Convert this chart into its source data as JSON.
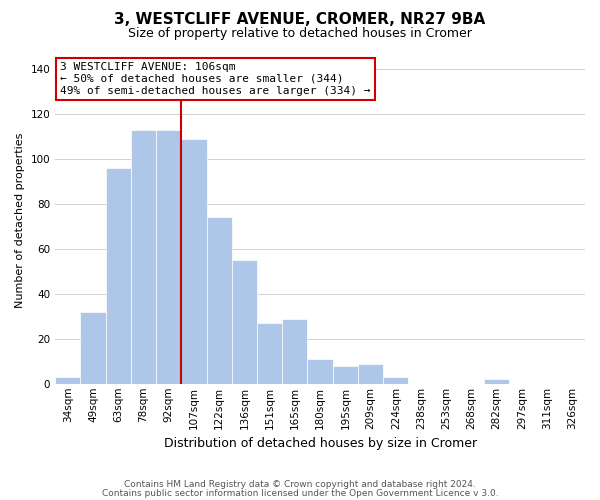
{
  "title": "3, WESTCLIFF AVENUE, CROMER, NR27 9BA",
  "subtitle": "Size of property relative to detached houses in Cromer",
  "xlabel": "Distribution of detached houses by size in Cromer",
  "ylabel": "Number of detached properties",
  "bar_labels": [
    "34sqm",
    "49sqm",
    "63sqm",
    "78sqm",
    "92sqm",
    "107sqm",
    "122sqm",
    "136sqm",
    "151sqm",
    "165sqm",
    "180sqm",
    "195sqm",
    "209sqm",
    "224sqm",
    "238sqm",
    "253sqm",
    "268sqm",
    "282sqm",
    "297sqm",
    "311sqm",
    "326sqm"
  ],
  "bar_values": [
    3,
    32,
    96,
    113,
    113,
    109,
    74,
    55,
    27,
    29,
    11,
    8,
    9,
    3,
    0,
    0,
    0,
    2,
    0,
    0,
    0
  ],
  "bar_color": "#aec6e8",
  "bar_edge_color": "#ffffff",
  "vline_x_index": 5,
  "vline_color": "#cc0000",
  "ylim": [
    0,
    145
  ],
  "yticks": [
    0,
    20,
    40,
    60,
    80,
    100,
    120,
    140
  ],
  "annotation_title": "3 WESTCLIFF AVENUE: 106sqm",
  "annotation_line1": "← 50% of detached houses are smaller (344)",
  "annotation_line2": "49% of semi-detached houses are larger (334) →",
  "annotation_box_color": "#ffffff",
  "annotation_box_edge": "#cc0000",
  "footer1": "Contains HM Land Registry data © Crown copyright and database right 2024.",
  "footer2": "Contains public sector information licensed under the Open Government Licence v 3.0.",
  "background_color": "#ffffff",
  "grid_color": "#d0d0d0",
  "title_fontsize": 11,
  "subtitle_fontsize": 9,
  "ylabel_fontsize": 8,
  "xlabel_fontsize": 9,
  "tick_fontsize": 7.5,
  "annotation_fontsize": 8,
  "footer_fontsize": 6.5
}
